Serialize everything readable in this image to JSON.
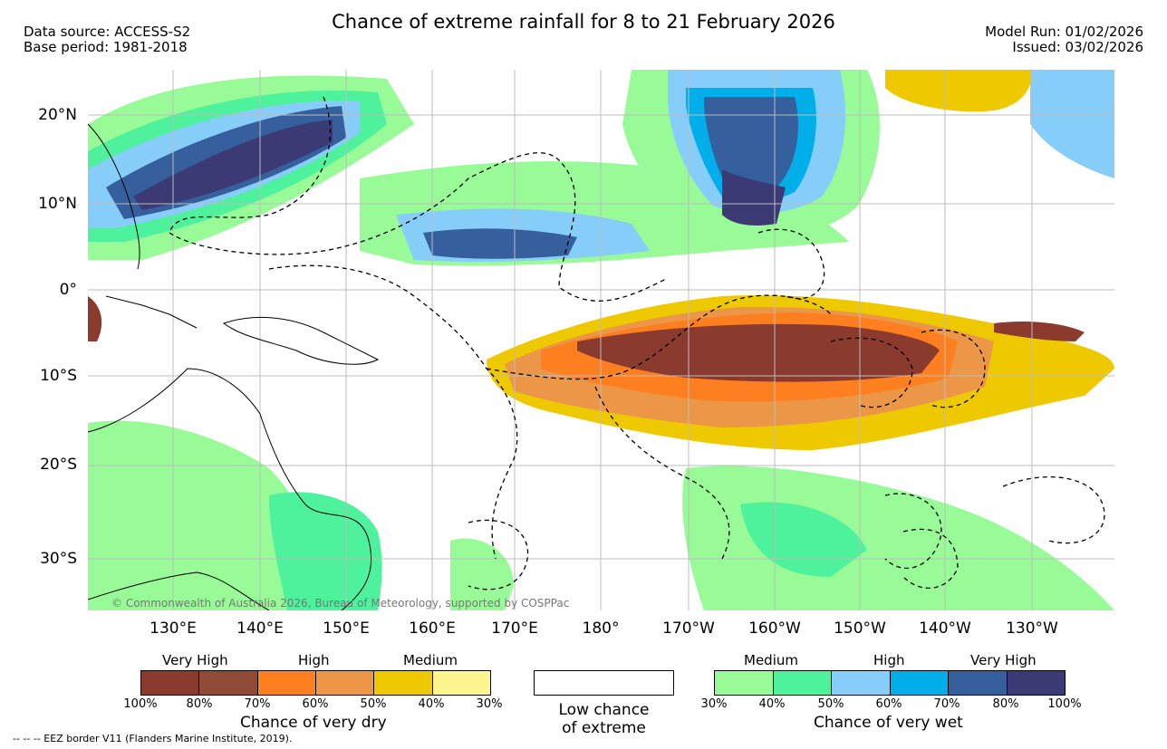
{
  "title": "Chance of extreme rainfall for 8 to 21 February 2026",
  "header_left": [
    "Data source: ACCESS-S2",
    "Base period: 1981-2018"
  ],
  "header_right": [
    "Model Run: 01/02/2026",
    "Issued: 03/02/2026"
  ],
  "latitude_labels": [
    "20°N",
    "10°N",
    "0°",
    "10°S",
    "20°S",
    "30°S"
  ],
  "longitude_labels": [
    "130°E",
    "140°E",
    "150°E",
    "160°E",
    "170°E",
    "180°",
    "170°W",
    "160°W",
    "150°W",
    "140°W",
    "130°W"
  ],
  "dry_legend": {
    "categories": [
      "Very High",
      "High",
      "Medium"
    ],
    "ticks": [
      "100%",
      "80%",
      "70%",
      "60%",
      "50%",
      "40%",
      "30%"
    ],
    "colors": [
      "#8b3a2e",
      "#8f4a38",
      "#fe7f20",
      "#eb9747",
      "#eec900",
      "#fdf58f"
    ],
    "label": "Chance of very dry"
  },
  "low_chance": {
    "label_line1": "Low chance",
    "label_line2": "of extreme"
  },
  "wet_legend": {
    "categories": [
      "Medium",
      "High",
      "Very High"
    ],
    "ticks": [
      "30%",
      "40%",
      "50%",
      "60%",
      "70%",
      "80%",
      "100%"
    ],
    "colors": [
      "#98fb98",
      "#4ef19c",
      "#87cdfa",
      "#00aeea",
      "#35609d",
      "#3b3a75"
    ],
    "label": "Chance of very wet"
  },
  "copyright": "© Commonwealth of Australia 2026, Bureau of Meteorology, supported by COSPPac",
  "eez_note": "-- -- -- EEZ border V11 (Flanders Marine Institute, 2019)."
}
